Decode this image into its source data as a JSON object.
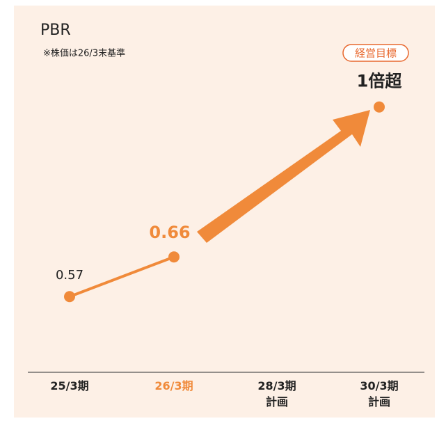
{
  "chart_data": {
    "type": "line",
    "title": "PBR",
    "subtitle": "※株価は26/3末基準",
    "annotation": "経営目標",
    "categories": [
      "25/3期",
      "26/3期",
      "28/3期\n計画",
      "30/3期\n計画"
    ],
    "values": [
      0.57,
      0.66,
      null,
      1
    ],
    "value_labels": [
      "0.57",
      "0.66",
      null,
      "1倍超"
    ],
    "color": "#f08a3a",
    "category_label_colors": [
      "#222222",
      "#f08a3a",
      "#222222",
      "#222222"
    ],
    "ylim": [
      0.4,
      1.05
    ]
  }
}
